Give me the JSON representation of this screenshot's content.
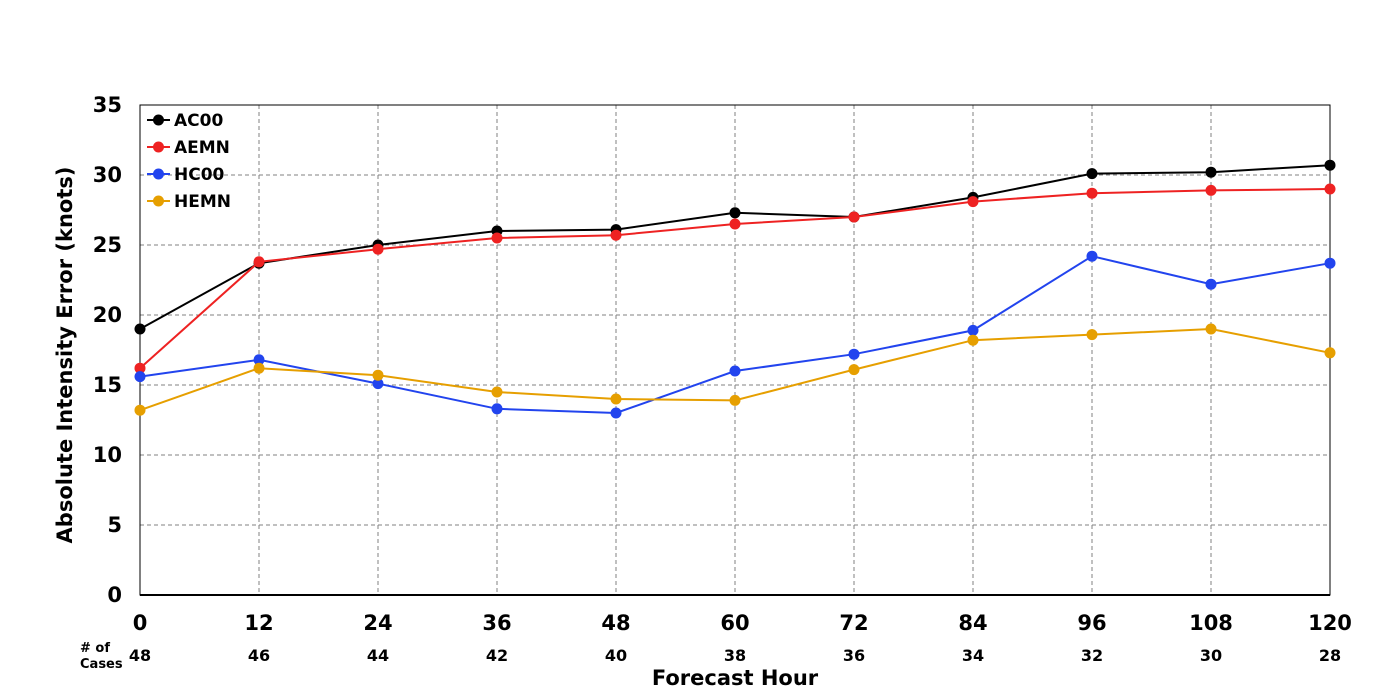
{
  "chart_data": {
    "type": "line",
    "title": "",
    "xlabel": "Forecast Hour",
    "ylabel": "Absolute Intensity Error (knots)",
    "x": [
      0,
      12,
      24,
      36,
      48,
      60,
      72,
      84,
      96,
      108,
      120
    ],
    "xlim": [
      0,
      120
    ],
    "ylim": [
      0,
      35
    ],
    "yticks": [
      0,
      5,
      10,
      15,
      20,
      25,
      30,
      35
    ],
    "grid": true,
    "legend_position": "top-left",
    "cases_header": [
      "# of",
      "Cases"
    ],
    "cases": [
      48,
      46,
      44,
      42,
      40,
      38,
      36,
      34,
      32,
      30,
      28
    ],
    "series": [
      {
        "name": "AC00",
        "color": "#000000",
        "values": [
          19.0,
          23.7,
          25.0,
          26.0,
          26.1,
          27.3,
          27.0,
          28.4,
          30.1,
          30.2,
          30.7
        ]
      },
      {
        "name": "AEMN",
        "color": "#ee2222",
        "values": [
          16.2,
          23.8,
          24.7,
          25.5,
          25.7,
          26.5,
          27.0,
          28.1,
          28.7,
          28.9,
          29.0
        ]
      },
      {
        "name": "HC00",
        "color": "#2244ee",
        "values": [
          15.6,
          16.8,
          15.1,
          13.3,
          13.0,
          16.0,
          17.2,
          18.9,
          24.2,
          22.2,
          23.7
        ]
      },
      {
        "name": "HEMN",
        "color": "#e69f00",
        "values": [
          13.2,
          16.2,
          15.7,
          14.5,
          14.0,
          13.9,
          16.1,
          18.2,
          18.6,
          19.0,
          17.3
        ]
      }
    ]
  }
}
